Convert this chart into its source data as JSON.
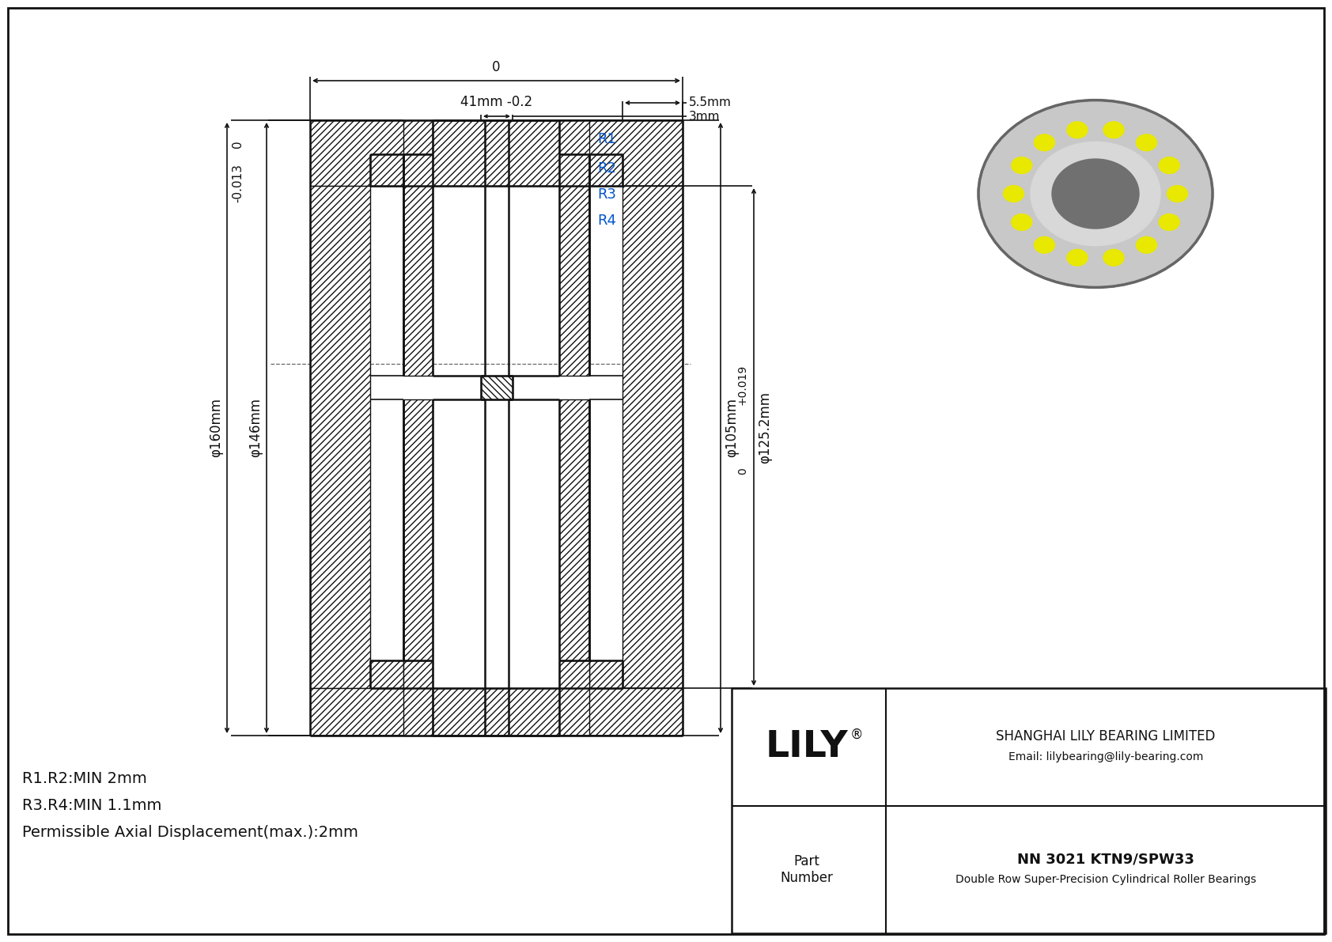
{
  "bg_color": "#ffffff",
  "line_color": "#111111",
  "blue_color": "#0055cc",
  "company": "SHANGHAI LILY BEARING LIMITED",
  "email": "Email: lilybearing@lily-bearing.com",
  "part_label": "Part\nNumber",
  "part_number": "NN 3021 KTN9/SPW33",
  "part_desc": "Double Row Super-Precision Cylindrical Roller Bearings",
  "lily_text": "LILY",
  "note1": "R1.R2:MIN 2mm",
  "note2": "R3.R4:MIN 1.1mm",
  "note3": "Permissible Axial Displacement(max.):2mm",
  "dim_top_zero": "0",
  "dim_top_val": "41mm -0.2",
  "dim_55": "5.5mm",
  "dim_3": "3mm",
  "dim_OD_zero": "0",
  "dim_OD_tol": "-0.013",
  "dim_OD_val": "φ160mm",
  "dim_IR_val": "φ146mm",
  "dim_OR_bore_val": "φ125.2mm",
  "dim_bore_tol_top": "+0.019",
  "dim_bore_tol_bot": "0",
  "dim_bore_val": "φ105mm",
  "label_R1": "R1",
  "label_R2": "R2",
  "label_R3": "R3",
  "label_R4": "R4"
}
